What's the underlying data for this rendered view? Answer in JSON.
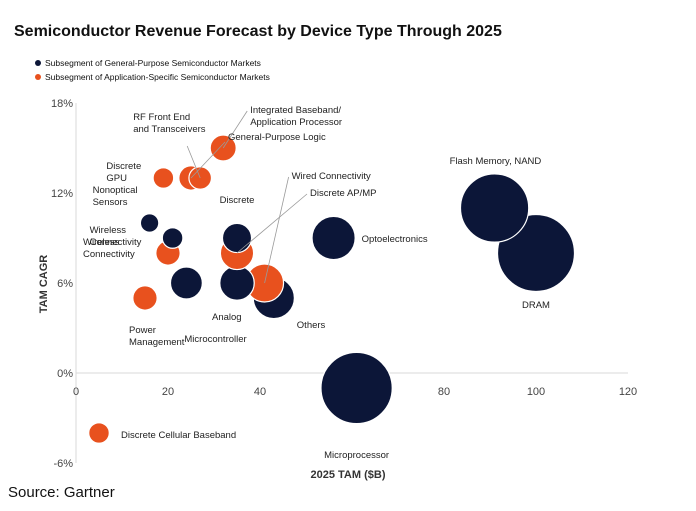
{
  "chart_data": {
    "type": "scatter",
    "title": "Semiconductor Revenue Forecast by Device Type Through 2025",
    "xlabel": "2025 TAM ($B)",
    "ylabel": "TAM CAGR",
    "xlim": [
      0,
      120
    ],
    "ylim": [
      -6,
      18
    ],
    "xticks": [
      "0",
      "20",
      "40",
      "60",
      "80",
      "100",
      "120"
    ],
    "yticks": [
      "-6%",
      "0%",
      "6%",
      "12%",
      "18%"
    ],
    "legend_position": "top-left",
    "colors": {
      "general": "#0c1638",
      "application": "#e8511e"
    },
    "series": [
      {
        "name": "Subsegment of General-Purpose Semiconductor Markets",
        "key": "general"
      },
      {
        "name": "Subsegment of Application-Specific Semiconductor Markets",
        "key": "application"
      }
    ],
    "points": [
      {
        "label": "Microprocessor",
        "series": "general",
        "x": 61,
        "y": -1,
        "size": 60
      },
      {
        "label": "DRAM",
        "series": "general",
        "x": 100,
        "y": 8,
        "size": 70
      },
      {
        "label": "Flash Memory, NAND",
        "series": "general",
        "x": 91,
        "y": 11,
        "size": 55
      },
      {
        "label": "Optoelectronics",
        "series": "general",
        "x": 56,
        "y": 9,
        "size": 22
      },
      {
        "label": "Others",
        "series": "general",
        "x": 43,
        "y": 5,
        "size": 20
      },
      {
        "label": "Discrete",
        "series": "general",
        "x": 35,
        "y": 9,
        "size": 10
      },
      {
        "label": "Analog",
        "series": "general",
        "x": 35,
        "y": 6,
        "size": 14
      },
      {
        "label": "Microcontroller",
        "series": "general",
        "x": 24,
        "y": 6,
        "size": 12
      },
      {
        "label": "Nonoptical Sensors",
        "series": "general",
        "x": 16,
        "y": 10,
        "size": 4
      },
      {
        "label": "Wireless Connectivity",
        "series": "general",
        "x": 21,
        "y": 9,
        "size": 5
      },
      {
        "label": "Wired Connectivity",
        "series": "application",
        "x": 41,
        "y": 6,
        "size": 17
      },
      {
        "label": "Discrete AP/MP",
        "series": "application",
        "x": 35,
        "y": 8,
        "size": 13
      },
      {
        "label": "General-Purpose Logic",
        "series": "application",
        "x": 25,
        "y": 13,
        "size": 7
      },
      {
        "label": "Integrated Baseband/ Application Processor",
        "series": "application",
        "x": 32,
        "y": 15,
        "size": 8
      },
      {
        "label": "RF Front End and Transceivers",
        "series": "application",
        "x": 27,
        "y": 13,
        "size": 6
      },
      {
        "label": "Discrete GPU",
        "series": "application",
        "x": 19,
        "y": 13,
        "size": 5
      },
      {
        "label": "Wireless Connectivity",
        "series": "application",
        "x": 20,
        "y": 8,
        "size": 7
      },
      {
        "label": "Power Management",
        "series": "application",
        "x": 15,
        "y": 5,
        "size": 7
      },
      {
        "label": "Discrete Cellular Baseband",
        "series": "application",
        "x": 5,
        "y": -4,
        "size": 5
      }
    ]
  },
  "source": "Source: Gartner"
}
